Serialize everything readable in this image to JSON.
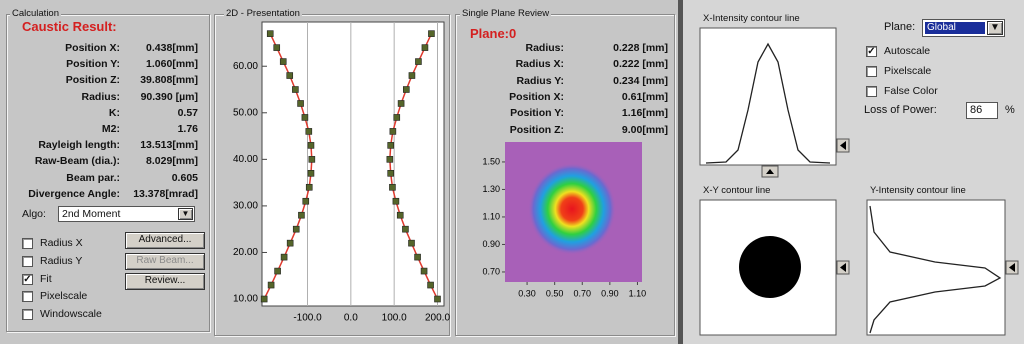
{
  "calculation": {
    "title": "Calculation",
    "result_title": "Caustic Result:",
    "rows": [
      [
        "Position X:",
        "0.438[mm]"
      ],
      [
        "Position Y:",
        "1.060[mm]"
      ],
      [
        "Position Z:",
        "39.808[mm]"
      ],
      [
        "Radius:",
        "90.390 [µm]"
      ],
      [
        "K:",
        "0.57"
      ],
      [
        "M2:",
        "1.76"
      ],
      [
        "Rayleigh length:",
        "13.513[mm]"
      ],
      [
        "Raw-Beam (dia.):",
        "8.029[mm]"
      ],
      [
        "Beam par.:",
        "0.605"
      ],
      [
        "Divergence Angle:",
        "13.378[mrad]"
      ]
    ],
    "algo_label": "Algo:",
    "algo": "2nd Moment",
    "checkboxes": [
      {
        "label": "Radius X",
        "checked": false
      },
      {
        "label": "Radius Y",
        "checked": false
      },
      {
        "label": "Fit",
        "checked": true
      },
      {
        "label": "Pixelscale",
        "checked": false
      },
      {
        "label": "Windowscale",
        "checked": false
      }
    ],
    "buttons": [
      {
        "label": "Advanced...",
        "enabled": true
      },
      {
        "label": "Raw Beam...",
        "enabled": false
      },
      {
        "label": "Review...",
        "enabled": true
      }
    ]
  },
  "chart_data": {
    "type": "scatter",
    "title": "2D - Presentation",
    "xlim": [
      -205,
      215
    ],
    "ylim": [
      8.5,
      69.5
    ],
    "xticks": [
      {
        "value": -100,
        "label": "-100.0"
      },
      {
        "value": 0,
        "label": "0.0"
      },
      {
        "value": 100,
        "label": "100.0"
      },
      {
        "value": 200,
        "label": "200.0"
      }
    ],
    "yticks": [
      {
        "value": 10,
        "label": "10.00"
      },
      {
        "value": 20,
        "label": "20.00"
      },
      {
        "value": 30,
        "label": "30.00"
      },
      {
        "value": 40,
        "label": "40.00"
      },
      {
        "value": 50,
        "label": "50.00"
      },
      {
        "value": 60,
        "label": "60.00"
      }
    ],
    "grid": true,
    "fit_color": "#e03a2e",
    "series": [
      {
        "color": "#55652a",
        "x": [
          -200,
          -184,
          -169,
          -154,
          -140,
          -126,
          -114,
          -104,
          -96,
          -92,
          -90,
          -92,
          -97,
          -106,
          -116,
          -128,
          -141,
          -156,
          -171,
          -186
        ],
        "values": [
          10,
          13,
          16,
          19,
          22,
          25,
          28,
          31,
          34,
          37,
          40,
          43,
          46,
          49,
          52,
          55,
          58,
          61,
          64,
          67
        ]
      },
      {
        "color": "#55652a",
        "x": [
          200,
          184,
          169,
          154,
          140,
          126,
          114,
          104,
          96,
          92,
          90,
          92,
          97,
          106,
          116,
          128,
          141,
          156,
          171,
          186
        ],
        "values": [
          10,
          13,
          16,
          19,
          22,
          25,
          28,
          31,
          34,
          37,
          40,
          43,
          46,
          49,
          52,
          55,
          58,
          61,
          64,
          67
        ]
      }
    ]
  },
  "plane_review": {
    "title": "Single Plane Review",
    "plane": "Plane:0",
    "rows": [
      [
        "Radius:",
        "0.228 [mm]"
      ],
      [
        "Radius X:",
        "0.222 [mm]"
      ],
      [
        "Radius Y:",
        "0.234 [mm]"
      ],
      [
        "Position X:",
        "0.61[mm]"
      ],
      [
        "Position Y:",
        "1.16[mm]"
      ],
      [
        "Position Z:",
        "9.00[mm]"
      ]
    ],
    "xlim": [
      0.14,
      1.133
    ],
    "ylim": [
      0.627,
      1.645
    ],
    "xticks": [
      {
        "value": 0.3,
        "label": "0.30"
      },
      {
        "value": 0.5,
        "label": "0.50"
      },
      {
        "value": 0.7,
        "label": "0.70"
      },
      {
        "value": 0.9,
        "label": "0.90"
      },
      {
        "value": 1.1,
        "label": "1.10"
      }
    ],
    "yticks": [
      {
        "value": 1.5,
        "label": "1.50"
      },
      {
        "value": 1.3,
        "label": "1.30"
      },
      {
        "value": 1.1,
        "label": "1.10"
      },
      {
        "value": 0.9,
        "label": "0.90"
      },
      {
        "value": 0.7,
        "label": "0.70"
      }
    ]
  },
  "contours": {
    "x_title": "X-Intensity contour line",
    "xy_title": "X-Y contour line",
    "y_title": "Y-Intensity contour line",
    "plane_label": "Plane:",
    "plane": "Global",
    "checkboxes": [
      {
        "label": "Autoscale",
        "checked": true
      },
      {
        "label": "Pixelscale",
        "checked": false
      },
      {
        "label": "False Color",
        "checked": false
      }
    ],
    "loss_label": "Loss of Power:",
    "loss_value": 86,
    "loss_unit": "%"
  }
}
